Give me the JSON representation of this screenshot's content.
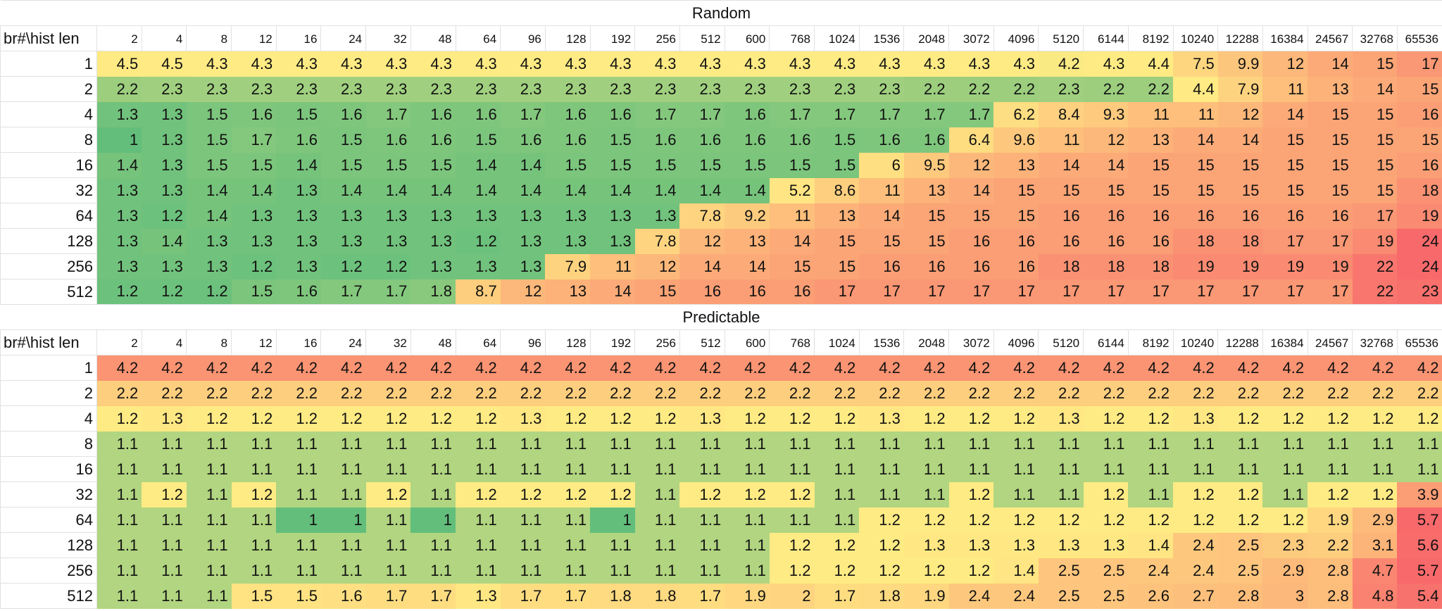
{
  "sheet": {
    "corner_label": "br#\\hist len",
    "columns": [
      "2",
      "4",
      "8",
      "12",
      "16",
      "24",
      "32",
      "48",
      "64",
      "96",
      "128",
      "192",
      "256",
      "512",
      "600",
      "768",
      "1024",
      "1536",
      "2048",
      "3072",
      "4096",
      "5120",
      "6144",
      "8192",
      "10240",
      "12288",
      "16384",
      "24567",
      "32768",
      "65536"
    ],
    "rows": [
      "1",
      "2",
      "4",
      "8",
      "16",
      "32",
      "64",
      "128",
      "256",
      "512"
    ],
    "color_scale": {
      "min": "#63BE7B",
      "mid": "#FFEB84",
      "max": "#F8696B"
    }
  },
  "chart_data": [
    {
      "type": "heatmap",
      "title": "Random",
      "xlabel": "hist len",
      "ylabel": "br#",
      "x": [
        2,
        4,
        8,
        12,
        16,
        24,
        32,
        48,
        64,
        96,
        128,
        192,
        256,
        512,
        600,
        768,
        1024,
        1536,
        2048,
        3072,
        4096,
        5120,
        6144,
        8192,
        10240,
        12288,
        16384,
        24567,
        32768,
        65536
      ],
      "y": [
        1,
        2,
        4,
        8,
        16,
        32,
        64,
        128,
        256,
        512
      ],
      "values": [
        [
          4.5,
          4.5,
          4.3,
          4.3,
          4.3,
          4.3,
          4.3,
          4.3,
          4.3,
          4.3,
          4.3,
          4.3,
          4.3,
          4.3,
          4.3,
          4.3,
          4.3,
          4.3,
          4.3,
          4.3,
          4.3,
          4.2,
          4.3,
          4.4,
          7.5,
          9.9,
          12,
          14,
          15,
          17
        ],
        [
          2.2,
          2.3,
          2.3,
          2.3,
          2.3,
          2.3,
          2.3,
          2.3,
          2.3,
          2.3,
          2.3,
          2.3,
          2.3,
          2.3,
          2.3,
          2.3,
          2.3,
          2.3,
          2.2,
          2.2,
          2.2,
          2.3,
          2.2,
          2.2,
          4.4,
          7.9,
          11,
          13,
          14,
          15
        ],
        [
          1.3,
          1.3,
          1.5,
          1.6,
          1.5,
          1.6,
          1.7,
          1.6,
          1.6,
          1.7,
          1.6,
          1.6,
          1.7,
          1.7,
          1.6,
          1.7,
          1.7,
          1.7,
          1.7,
          1.7,
          6.2,
          8.4,
          9.3,
          11,
          11,
          12,
          14,
          15,
          15,
          16
        ],
        [
          1,
          1.3,
          1.5,
          1.7,
          1.6,
          1.5,
          1.6,
          1.6,
          1.5,
          1.6,
          1.6,
          1.5,
          1.6,
          1.6,
          1.6,
          1.6,
          1.5,
          1.6,
          1.6,
          6.4,
          9.6,
          11,
          12,
          13,
          14,
          14,
          15,
          15,
          15,
          15
        ],
        [
          1.4,
          1.3,
          1.5,
          1.5,
          1.4,
          1.5,
          1.5,
          1.5,
          1.4,
          1.4,
          1.5,
          1.5,
          1.5,
          1.5,
          1.5,
          1.5,
          1.5,
          6,
          9.5,
          12,
          13,
          14,
          14,
          15,
          15,
          15,
          15,
          15,
          15,
          16
        ],
        [
          1.3,
          1.3,
          1.4,
          1.4,
          1.3,
          1.4,
          1.4,
          1.4,
          1.4,
          1.4,
          1.4,
          1.4,
          1.4,
          1.4,
          1.4,
          5.2,
          8.6,
          11,
          13,
          14,
          15,
          15,
          15,
          15,
          15,
          15,
          15,
          15,
          15,
          18
        ],
        [
          1.3,
          1.2,
          1.4,
          1.3,
          1.3,
          1.3,
          1.3,
          1.3,
          1.3,
          1.3,
          1.3,
          1.3,
          1.3,
          7.8,
          9.2,
          11,
          13,
          14,
          15,
          15,
          15,
          16,
          16,
          16,
          16,
          16,
          16,
          16,
          17,
          19
        ],
        [
          1.3,
          1.4,
          1.3,
          1.3,
          1.3,
          1.3,
          1.3,
          1.3,
          1.2,
          1.3,
          1.3,
          1.3,
          7.8,
          12,
          13,
          14,
          15,
          15,
          15,
          16,
          16,
          16,
          16,
          16,
          18,
          18,
          17,
          17,
          19,
          24
        ],
        [
          1.3,
          1.3,
          1.3,
          1.2,
          1.3,
          1.2,
          1.2,
          1.3,
          1.3,
          1.3,
          7.9,
          11,
          12,
          14,
          14,
          15,
          15,
          16,
          16,
          16,
          16,
          18,
          18,
          18,
          19,
          19,
          19,
          19,
          22,
          24
        ],
        [
          1.2,
          1.2,
          1.2,
          1.5,
          1.6,
          1.7,
          1.7,
          1.8,
          8.7,
          12,
          13,
          14,
          15,
          16,
          16,
          16,
          17,
          17,
          17,
          17,
          17,
          17,
          17,
          17,
          17,
          17,
          17,
          17,
          22,
          23
        ]
      ]
    },
    {
      "type": "heatmap",
      "title": "Predictable",
      "xlabel": "hist len",
      "ylabel": "br#",
      "x": [
        2,
        4,
        8,
        12,
        16,
        24,
        32,
        48,
        64,
        96,
        128,
        192,
        256,
        512,
        600,
        768,
        1024,
        1536,
        2048,
        3072,
        4096,
        5120,
        6144,
        8192,
        10240,
        12288,
        16384,
        24567,
        32768,
        65536
      ],
      "y": [
        1,
        2,
        4,
        8,
        16,
        32,
        64,
        128,
        256,
        512
      ],
      "values": [
        [
          4.2,
          4.2,
          4.2,
          4.2,
          4.2,
          4.2,
          4.2,
          4.2,
          4.2,
          4.2,
          4.2,
          4.2,
          4.2,
          4.2,
          4.2,
          4.2,
          4.2,
          4.2,
          4.2,
          4.2,
          4.2,
          4.2,
          4.2,
          4.2,
          4.2,
          4.2,
          4.2,
          4.2,
          4.2,
          4.2
        ],
        [
          2.2,
          2.2,
          2.2,
          2.2,
          2.2,
          2.2,
          2.2,
          2.2,
          2.2,
          2.2,
          2.2,
          2.2,
          2.2,
          2.2,
          2.2,
          2.2,
          2.2,
          2.2,
          2.2,
          2.2,
          2.2,
          2.2,
          2.2,
          2.2,
          2.2,
          2.2,
          2.2,
          2.2,
          2.2,
          2.2
        ],
        [
          1.2,
          1.3,
          1.2,
          1.2,
          1.2,
          1.2,
          1.2,
          1.2,
          1.2,
          1.3,
          1.2,
          1.2,
          1.2,
          1.3,
          1.2,
          1.2,
          1.2,
          1.3,
          1.2,
          1.2,
          1.2,
          1.3,
          1.2,
          1.2,
          1.3,
          1.2,
          1.2,
          1.2,
          1.2,
          1.2
        ],
        [
          1.1,
          1.1,
          1.1,
          1.1,
          1.1,
          1.1,
          1.1,
          1.1,
          1.1,
          1.1,
          1.1,
          1.1,
          1.1,
          1.1,
          1.1,
          1.1,
          1.1,
          1.1,
          1.1,
          1.1,
          1.1,
          1.1,
          1.1,
          1.1,
          1.1,
          1.1,
          1.1,
          1.1,
          1.1,
          1.1
        ],
        [
          1.1,
          1.1,
          1.1,
          1.1,
          1.1,
          1.1,
          1.1,
          1.1,
          1.1,
          1.1,
          1.1,
          1.1,
          1.1,
          1.1,
          1.1,
          1.1,
          1.1,
          1.1,
          1.1,
          1.1,
          1.1,
          1.1,
          1.1,
          1.1,
          1.1,
          1.1,
          1.1,
          1.1,
          1.1,
          1.1
        ],
        [
          1.1,
          1.2,
          1.1,
          1.2,
          1.1,
          1.1,
          1.2,
          1.1,
          1.2,
          1.2,
          1.2,
          1.2,
          1.1,
          1.2,
          1.2,
          1.2,
          1.1,
          1.1,
          1.1,
          1.2,
          1.1,
          1.1,
          1.2,
          1.1,
          1.2,
          1.2,
          1.1,
          1.2,
          1.2,
          3.9
        ],
        [
          1.1,
          1.1,
          1.1,
          1.1,
          1,
          1,
          1.1,
          1,
          1.1,
          1.1,
          1.1,
          1,
          1.1,
          1.1,
          1.1,
          1.1,
          1.1,
          1.2,
          1.2,
          1.2,
          1.2,
          1.2,
          1.2,
          1.2,
          1.2,
          1.2,
          1.2,
          1.9,
          2.9,
          5.7
        ],
        [
          1.1,
          1.1,
          1.1,
          1.1,
          1.1,
          1.1,
          1.1,
          1.1,
          1.1,
          1.1,
          1.1,
          1.1,
          1.1,
          1.1,
          1.1,
          1.2,
          1.2,
          1.2,
          1.3,
          1.3,
          1.3,
          1.3,
          1.3,
          1.4,
          2.4,
          2.5,
          2.3,
          2.2,
          3.1,
          5.6
        ],
        [
          1.1,
          1.1,
          1.1,
          1.1,
          1.1,
          1.1,
          1.1,
          1.1,
          1.1,
          1.1,
          1.1,
          1.1,
          1.1,
          1.1,
          1.1,
          1.2,
          1.2,
          1.2,
          1.2,
          1.2,
          1.4,
          2.5,
          2.5,
          2.4,
          2.4,
          2.5,
          2.9,
          2.8,
          4.7,
          5.7
        ],
        [
          1.1,
          1.1,
          1.1,
          1.5,
          1.5,
          1.6,
          1.7,
          1.7,
          1.3,
          1.7,
          1.7,
          1.8,
          1.8,
          1.7,
          1.9,
          2,
          1.7,
          1.8,
          1.9,
          2.4,
          2.4,
          2.5,
          2.5,
          2.6,
          2.7,
          2.8,
          3,
          2.8,
          4.8,
          5.4
        ]
      ]
    }
  ]
}
